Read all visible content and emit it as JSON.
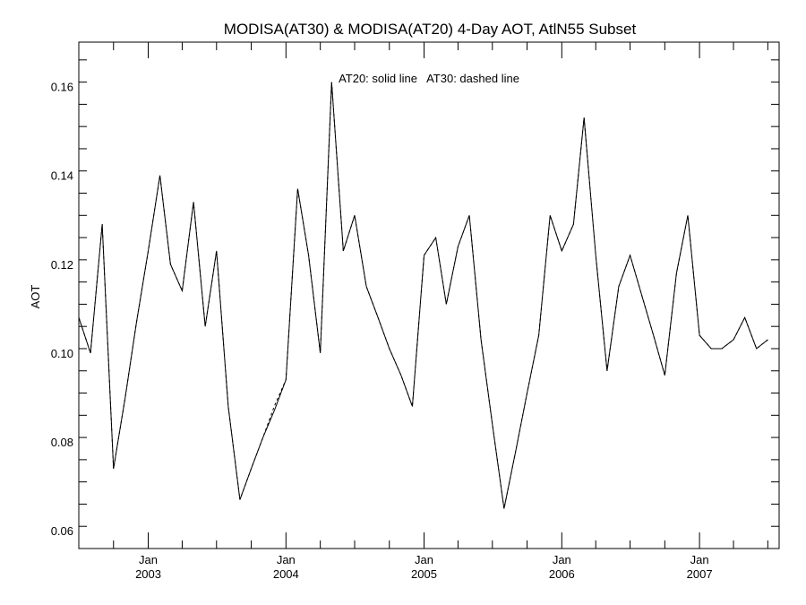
{
  "chart_data": {
    "type": "line",
    "title": "MODISA(AT30) & MODISA(AT20) 4-Day AOT, AtlN55 Subset",
    "ylabel": "AOT",
    "annotation": "AT20: solid line   AT30: dashed line",
    "ylim": [
      0.056,
      0.17
    ],
    "xlim": [
      "2002-07-01",
      "2007-07-31"
    ],
    "yticks": [
      {
        "value": 0.06,
        "label": "0.06"
      },
      {
        "value": 0.08,
        "label": "0.08"
      },
      {
        "value": 0.1,
        "label": "0.10"
      },
      {
        "value": 0.12,
        "label": "0.12"
      },
      {
        "value": 0.14,
        "label": "0.14"
      },
      {
        "value": 0.16,
        "label": "0.16"
      }
    ],
    "yminor_step": 0.005,
    "xticks": [
      {
        "date": "2003-01-01",
        "month": "Jan",
        "year": "2003"
      },
      {
        "date": "2004-01-01",
        "month": "Jan",
        "year": "2004"
      },
      {
        "date": "2005-01-01",
        "month": "Jan",
        "year": "2005"
      },
      {
        "date": "2006-01-01",
        "month": "Jan",
        "year": "2006"
      },
      {
        "date": "2007-01-01",
        "month": "Jan",
        "year": "2007"
      }
    ],
    "xminor_months": [
      4,
      7,
      10
    ],
    "series": [
      {
        "name": "AT20",
        "style": "solid",
        "color": "#000000",
        "x": [
          "2002-07-01",
          "2002-08-01",
          "2002-09-01",
          "2002-10-01",
          "2002-11-01",
          "2002-12-01",
          "2003-01-01",
          "2003-02-01",
          "2003-03-01",
          "2003-04-01",
          "2003-05-01",
          "2003-06-01",
          "2003-07-01",
          "2003-08-01",
          "2003-09-01",
          "2003-10-01",
          "2003-11-01",
          "2003-12-01",
          "2004-01-01",
          "2004-02-01",
          "2004-03-01",
          "2004-04-01",
          "2004-05-01",
          "2004-06-01",
          "2004-07-01",
          "2004-08-01",
          "2004-09-01",
          "2004-10-01",
          "2004-11-01",
          "2004-12-01",
          "2005-01-01",
          "2005-02-01",
          "2005-03-01",
          "2005-04-01",
          "2005-05-01",
          "2005-06-01",
          "2005-07-01",
          "2005-08-01",
          "2005-09-01",
          "2005-10-01",
          "2005-11-01",
          "2005-12-01",
          "2006-01-01",
          "2006-02-01",
          "2006-03-01",
          "2006-04-01",
          "2006-05-01",
          "2006-06-01",
          "2006-07-01",
          "2006-08-01",
          "2006-09-01",
          "2006-10-01",
          "2006-11-01",
          "2006-12-01",
          "2007-01-01",
          "2007-02-01",
          "2007-03-01",
          "2007-04-01",
          "2007-05-01",
          "2007-06-01",
          "2007-07-01"
        ],
        "values": [
          0.108,
          0.1,
          0.129,
          0.074,
          0.09,
          0.107,
          0.123,
          0.14,
          0.12,
          0.114,
          0.134,
          0.106,
          0.123,
          0.088,
          0.067,
          0.074,
          0.081,
          0.087,
          0.094,
          0.137,
          0.122,
          0.1,
          0.161,
          0.123,
          0.131,
          0.115,
          0.108,
          0.101,
          0.095,
          0.088,
          0.122,
          0.126,
          0.111,
          0.124,
          0.131,
          0.103,
          0.084,
          0.065,
          0.078,
          0.091,
          0.104,
          0.131,
          0.123,
          0.129,
          0.153,
          0.122,
          0.096,
          0.115,
          0.122,
          0.113,
          0.104,
          0.095,
          0.118,
          0.131,
          0.104,
          0.101,
          0.101,
          0.103,
          0.108,
          0.101,
          0.103
        ]
      },
      {
        "name": "AT30",
        "style": "dashed",
        "color": "#000000",
        "x": [
          "2002-07-01",
          "2002-08-01",
          "2002-09-01",
          "2002-10-01",
          "2002-11-01",
          "2002-12-01",
          "2003-01-01",
          "2003-02-01",
          "2003-03-01",
          "2003-04-01",
          "2003-05-01",
          "2003-06-01",
          "2003-07-01",
          "2003-08-01",
          "2003-09-01",
          "2003-10-01",
          "2003-11-01",
          "2003-12-01",
          "2004-01-01",
          "2004-02-01",
          "2004-03-01",
          "2004-04-01",
          "2004-05-01",
          "2004-06-01",
          "2004-07-01",
          "2004-08-01",
          "2004-09-01",
          "2004-10-01",
          "2004-11-01",
          "2004-12-01",
          "2005-01-01",
          "2005-02-01",
          "2005-03-01",
          "2005-04-01",
          "2005-05-01",
          "2005-06-01",
          "2005-07-01",
          "2005-08-01",
          "2005-09-01",
          "2005-10-01",
          "2005-11-01",
          "2005-12-01",
          "2006-01-01",
          "2006-02-01",
          "2006-03-01",
          "2006-04-01",
          "2006-05-01",
          "2006-06-01",
          "2006-07-01",
          "2006-08-01",
          "2006-09-01",
          "2006-10-01",
          "2006-11-01",
          "2006-12-01",
          "2007-01-01",
          "2007-02-01",
          "2007-03-01",
          "2007-04-01",
          "2007-05-01",
          "2007-06-01",
          "2007-07-01"
        ],
        "values": [
          0.108,
          0.1,
          0.129,
          0.074,
          0.09,
          0.107,
          0.123,
          0.14,
          0.12,
          0.114,
          0.134,
          0.106,
          0.123,
          0.088,
          0.067,
          0.074,
          0.081,
          0.088,
          0.094,
          0.137,
          0.122,
          0.1,
          0.161,
          0.123,
          0.131,
          0.115,
          0.108,
          0.101,
          0.095,
          0.088,
          0.122,
          0.126,
          0.111,
          0.124,
          0.131,
          0.103,
          0.084,
          0.065,
          0.078,
          0.091,
          0.104,
          0.131,
          0.123,
          0.129,
          0.153,
          0.122,
          0.096,
          0.115,
          0.122,
          0.113,
          0.104,
          0.095,
          0.118,
          0.131,
          0.104,
          0.101,
          0.101,
          0.103,
          0.108,
          0.101,
          0.103
        ]
      }
    ],
    "grid": false,
    "legend": "none"
  }
}
